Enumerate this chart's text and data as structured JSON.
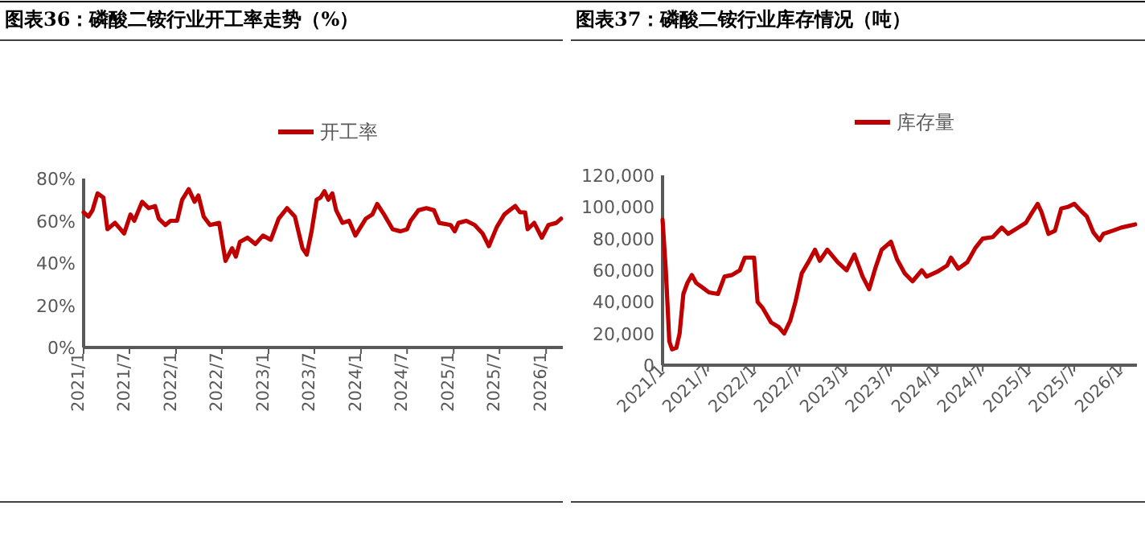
{
  "chart_data": [
    {
      "type": "line",
      "title": "图表36：磷酸二铵行业开工率走势（%）",
      "legend": "top",
      "xlim": [
        "2021-01-01",
        "2026-03-08"
      ],
      "xticks": [
        {
          "value": "2021-01",
          "label": "2021/1"
        },
        {
          "value": "2021-07",
          "label": "2021/7"
        },
        {
          "value": "2022-01",
          "label": "2022/1"
        },
        {
          "value": "2022-07",
          "label": "2022/7"
        },
        {
          "value": "2023-01",
          "label": "2023/1"
        },
        {
          "value": "2023-07",
          "label": "2023/7"
        },
        {
          "value": "2024-01",
          "label": "2024/1"
        },
        {
          "value": "2024-07",
          "label": "2024/7"
        },
        {
          "value": "2025-01",
          "label": "2025/1"
        },
        {
          "value": "2025-07",
          "label": "2025/7"
        },
        {
          "value": "2026-01",
          "label": "2026/1"
        }
      ],
      "ylim": [
        0,
        80
      ],
      "yticks": [
        {
          "value": 0,
          "label": "0%"
        },
        {
          "value": 20,
          "label": "20%"
        },
        {
          "value": 40,
          "label": "40%"
        },
        {
          "value": 60,
          "label": "60%"
        },
        {
          "value": 80,
          "label": "80%"
        }
      ],
      "series": [
        {
          "name": "开工率",
          "color": "#c00000",
          "x": [
            "2021-01-01",
            "2021-01-20",
            "2021-02-05",
            "2021-02-25",
            "2021-03-20",
            "2021-04-05",
            "2021-05-05",
            "2021-06-10",
            "2021-07-05",
            "2021-07-20",
            "2021-08-20",
            "2021-09-15",
            "2021-10-10",
            "2021-10-25",
            "2021-11-20",
            "2021-12-10",
            "2022-01-05",
            "2022-01-25",
            "2022-02-20",
            "2022-03-15",
            "2022-03-30",
            "2022-04-20",
            "2022-05-15",
            "2022-06-20",
            "2022-07-15",
            "2022-08-10",
            "2022-08-25",
            "2022-09-10",
            "2022-10-10",
            "2022-11-10",
            "2022-12-10",
            "2023-01-10",
            "2023-02-10",
            "2023-03-15",
            "2023-04-15",
            "2023-05-15",
            "2023-06-01",
            "2023-06-20",
            "2023-07-10",
            "2023-07-25",
            "2023-08-10",
            "2023-08-25",
            "2023-09-10",
            "2023-09-25",
            "2023-10-20",
            "2023-11-15",
            "2023-12-10",
            "2024-01-20",
            "2024-02-15",
            "2024-03-05",
            "2024-04-01",
            "2024-05-05",
            "2024-06-05",
            "2024-07-01",
            "2024-07-15",
            "2024-08-15",
            "2024-09-15",
            "2024-10-15",
            "2024-11-05",
            "2024-12-20",
            "2025-01-05",
            "2025-01-20",
            "2025-02-20",
            "2025-03-25",
            "2025-04-25",
            "2025-05-20",
            "2025-06-20",
            "2025-07-20",
            "2025-08-10",
            "2025-09-01",
            "2025-09-20",
            "2025-10-10",
            "2025-10-20",
            "2025-11-15",
            "2025-12-15",
            "2026-01-10",
            "2026-02-10",
            "2026-03-01"
          ],
          "values": [
            64,
            62,
            65,
            73,
            71,
            56,
            59,
            54,
            63,
            60,
            69,
            66,
            67,
            61,
            58,
            60,
            60,
            70,
            75,
            69,
            72,
            62,
            58,
            59,
            41,
            47,
            43,
            50,
            52,
            49,
            53,
            51,
            61,
            66,
            62,
            47,
            44,
            55,
            70,
            71,
            74,
            70,
            73,
            65,
            59,
            60,
            53,
            61,
            63,
            68,
            63,
            56,
            55,
            56,
            60,
            65,
            66,
            65,
            59,
            58,
            55,
            59,
            60,
            58,
            54,
            48,
            57,
            63,
            65,
            67,
            64,
            64,
            56,
            59,
            52,
            58,
            59,
            61
          ]
        }
      ]
    },
    {
      "type": "line",
      "title": "图表37：磷酸二铵行业库存情况（吨）",
      "legend": "top",
      "xlim": [
        "2021-01-01",
        "2026-03-08"
      ],
      "xticks": [
        {
          "value": "2021-01",
          "label": "2021/1"
        },
        {
          "value": "2021-07",
          "label": "2021/7"
        },
        {
          "value": "2022-01",
          "label": "2022/1"
        },
        {
          "value": "2022-07",
          "label": "2022/7"
        },
        {
          "value": "2023-01",
          "label": "2023/1"
        },
        {
          "value": "2023-07",
          "label": "2023/7"
        },
        {
          "value": "2024-01",
          "label": "2024/1"
        },
        {
          "value": "2024-07",
          "label": "2024/7"
        },
        {
          "value": "2025-01",
          "label": "2025/1"
        },
        {
          "value": "2025-07",
          "label": "2025/7"
        },
        {
          "value": "2026-01",
          "label": "2026/1"
        }
      ],
      "ylim": [
        0,
        120000
      ],
      "yticks": [
        0,
        {
          "value": 20000,
          "label": "20,000"
        },
        {
          "value": 40000,
          "label": "40,000"
        },
        {
          "value": 60000,
          "label": "60,000"
        },
        {
          "value": 80000,
          "label": "80,000"
        },
        {
          "value": 100000,
          "label": "100,000"
        },
        {
          "value": 120000,
          "label": "120,000"
        }
      ],
      "series": [
        {
          "name": "库存量",
          "color": "#c00000",
          "x": [
            "2021-01-01",
            "2021-01-14",
            "2021-01-28",
            "2021-02-08",
            "2021-02-25",
            "2021-03-10",
            "2021-03-25",
            "2021-04-10",
            "2021-04-28",
            "2021-05-15",
            "2021-06-10",
            "2021-07-05",
            "2021-08-10",
            "2021-09-05",
            "2021-10-05",
            "2021-11-05",
            "2021-11-25",
            "2022-01-01",
            "2022-01-15",
            "2022-02-05",
            "2022-03-10",
            "2022-04-10",
            "2022-05-01",
            "2022-05-25",
            "2022-06-15",
            "2022-07-10",
            "2022-08-05",
            "2022-09-01",
            "2022-09-20",
            "2022-10-20",
            "2022-12-01",
            "2023-01-05",
            "2023-02-05",
            "2023-03-10",
            "2023-04-05",
            "2023-05-01",
            "2023-05-25",
            "2023-07-01",
            "2023-07-25",
            "2023-08-25",
            "2023-09-25",
            "2023-11-01",
            "2023-11-20",
            "2024-01-01",
            "2024-02-10",
            "2024-02-25",
            "2024-03-25",
            "2024-04-30",
            "2024-06-01",
            "2024-07-01",
            "2024-08-10",
            "2024-09-15",
            "2024-10-10",
            "2024-11-20",
            "2024-12-20",
            "2025-01-12",
            "2025-02-05",
            "2025-02-20",
            "2025-03-20",
            "2025-04-15",
            "2025-05-10",
            "2025-06-05",
            "2025-07-01",
            "2025-07-25",
            "2025-08-20",
            "2025-09-15",
            "2025-10-10",
            "2025-10-25",
            "2025-12-01",
            "2026-01-05",
            "2026-03-01"
          ],
          "values": [
            92000,
            60000,
            15000,
            10000,
            11000,
            20000,
            45000,
            52000,
            57000,
            52000,
            49000,
            46000,
            45000,
            56000,
            57000,
            60000,
            68000,
            68000,
            40000,
            36000,
            27000,
            24000,
            20000,
            28000,
            40000,
            58000,
            65000,
            73000,
            66000,
            73000,
            65000,
            60000,
            70000,
            56000,
            48000,
            62000,
            73000,
            78000,
            67000,
            58000,
            53000,
            60000,
            56000,
            59000,
            63000,
            68000,
            61000,
            65000,
            74000,
            80000,
            81000,
            87000,
            83000,
            87000,
            90000,
            96000,
            102000,
            97000,
            83000,
            85000,
            99000,
            100000,
            102000,
            98000,
            94000,
            84000,
            79000,
            83000,
            85000,
            87000,
            89000
          ]
        }
      ]
    }
  ]
}
